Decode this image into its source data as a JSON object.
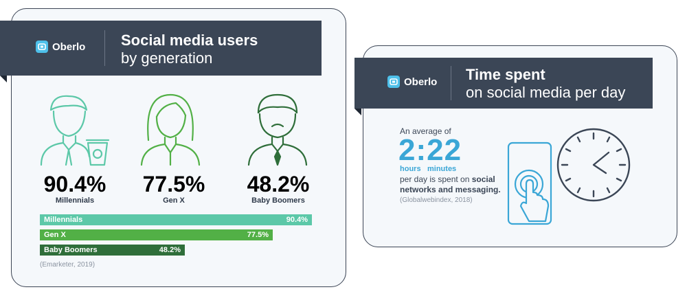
{
  "left_panel": {
    "brand": "Oberlo",
    "title_line1": "Social media users",
    "title_line2": "by generation",
    "icons": [
      "millennial-person-icon",
      "genx-person-icon",
      "baby-boomer-person-icon"
    ],
    "stats": [
      {
        "value": "90.4%",
        "label": "Millennials",
        "color": "#5cc8a8"
      },
      {
        "value": "77.5%",
        "label": "Gen X",
        "color": "#52b046"
      },
      {
        "value": "48.2%",
        "label": "Baby Boomers",
        "color": "#2f6e3a"
      }
    ],
    "source": "(Emarketer, 2019)"
  },
  "chart_data": {
    "type": "bar",
    "categories": [
      "Millennials",
      "Gen X",
      "Baby Boomers"
    ],
    "values": [
      90.4,
      77.5,
      48.2
    ],
    "value_labels": [
      "90.4%",
      "77.5%",
      "48.2%"
    ],
    "colors": [
      "#5cc8a8",
      "#52b046",
      "#2f6e3a"
    ],
    "xlim": [
      0,
      100
    ],
    "orientation": "horizontal"
  },
  "right_panel": {
    "brand": "Oberlo",
    "title_line1": "Time spent",
    "title_line2": "on social media per day",
    "intro": "An average of",
    "time": "2:22",
    "hours_label": "hours",
    "minutes_label": "minutes",
    "desc_plain": "per day is spent on ",
    "desc_bold1": "social",
    "desc_bold2": "networks and messaging.",
    "source": "(Globalwebindex, 2018)",
    "icons": [
      "smartphone-touch-icon",
      "clock-icon"
    ]
  }
}
